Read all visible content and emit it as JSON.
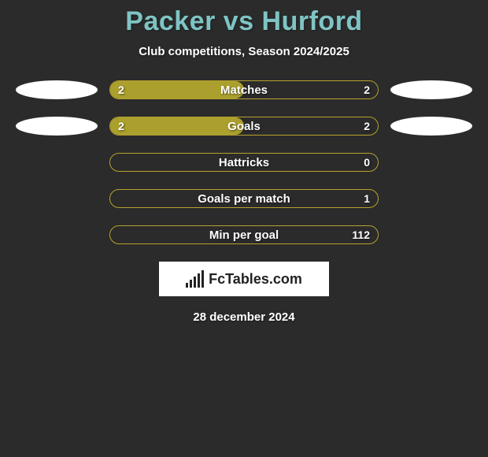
{
  "title": "Packer vs Hurford",
  "subtitle": "Club competitions, Season 2024/2025",
  "background_color": "#2b2b2b",
  "title_color": "#7fc4c4",
  "bar_border_color": "#b5a12e",
  "bar_fill_color": "#aba02d",
  "text_color": "#ffffff",
  "badge_color": "#ffffff",
  "title_fontsize": 34,
  "subtitle_fontsize": 15,
  "label_fontsize": 15,
  "value_fontsize": 14,
  "logo_text": "FcTables.com",
  "date": "28 december 2024",
  "rows": [
    {
      "label": "Matches",
      "left": "2",
      "right": "2",
      "fill_pct": 50,
      "show_badges": true
    },
    {
      "label": "Goals",
      "left": "2",
      "right": "2",
      "fill_pct": 50,
      "show_badges": true
    },
    {
      "label": "Hattricks",
      "left": "",
      "right": "0",
      "fill_pct": 0,
      "show_badges": false
    },
    {
      "label": "Goals per match",
      "left": "",
      "right": "1",
      "fill_pct": 0,
      "show_badges": false
    },
    {
      "label": "Min per goal",
      "left": "",
      "right": "112",
      "fill_pct": 0,
      "show_badges": false
    }
  ]
}
